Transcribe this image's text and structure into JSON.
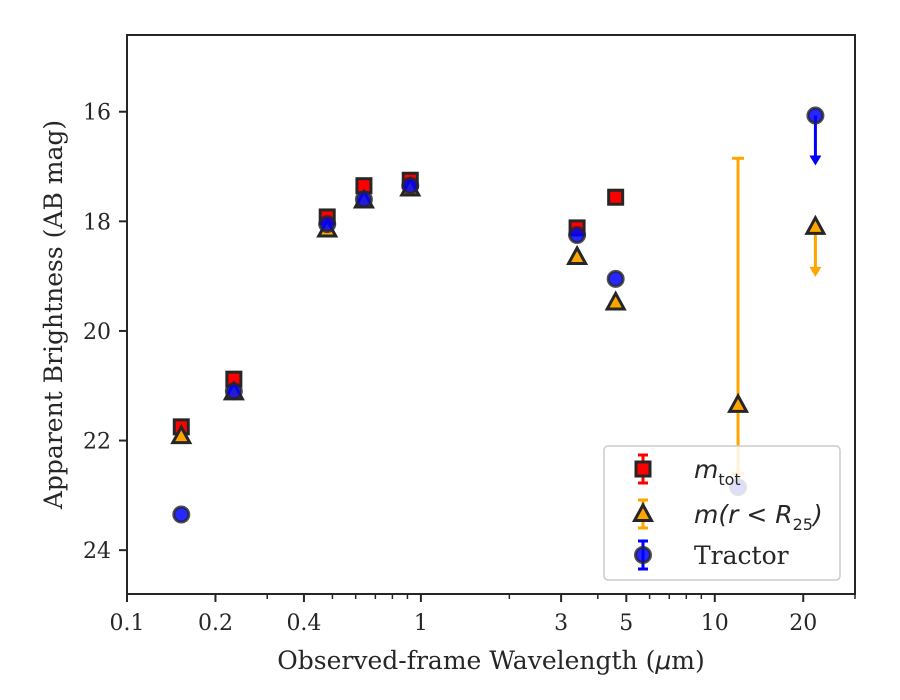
{
  "chart_data": {
    "type": "scatter",
    "xlabel_prefix": "Observed-frame Wavelength (",
    "xlabel_unit_math": "μ",
    "xlabel_suffix": "m)",
    "ylabel": "Apparent Brightness (AB mag)",
    "xscale": "log",
    "xlim": [
      0.1,
      30
    ],
    "ylim": [
      24.8,
      14.6
    ],
    "y_inverted": true,
    "x_major_ticks": [
      {
        "value": 0.1,
        "label": "0.1"
      },
      {
        "value": 0.2,
        "label": "0.2"
      },
      {
        "value": 0.4,
        "label": "0.4"
      },
      {
        "value": 1,
        "label": "1"
      },
      {
        "value": 3,
        "label": "3"
      },
      {
        "value": 5,
        "label": "5"
      },
      {
        "value": 10,
        "label": "10"
      },
      {
        "value": 20,
        "label": "20"
      }
    ],
    "x_minor_ticks": [
      0.3,
      0.5,
      0.6,
      0.7,
      0.8,
      0.9,
      2,
      4,
      6,
      7,
      8,
      9,
      30
    ],
    "y_ticks": [
      16,
      18,
      20,
      22,
      24
    ],
    "grid": false,
    "legend_position": "bottom-right",
    "series": [
      {
        "name": "m_tot",
        "legend_main": "m",
        "legend_sub": "tot",
        "marker": "square",
        "color": "#ff0000",
        "edge": "#262626",
        "points": [
          {
            "x": 0.153,
            "y": 21.75
          },
          {
            "x": 0.231,
            "y": 20.88
          },
          {
            "x": 0.48,
            "y": 17.92
          },
          {
            "x": 0.64,
            "y": 17.35
          },
          {
            "x": 0.92,
            "y": 17.25
          },
          {
            "x": 3.4,
            "y": 18.12
          },
          {
            "x": 4.6,
            "y": 17.56
          }
        ]
      },
      {
        "name": "m(r < R25)",
        "legend_main": "m(r < R",
        "legend_sub": "25",
        "legend_close": ")",
        "marker": "triangle",
        "color": "#ffa500",
        "edge": "#262626",
        "points": [
          {
            "x": 0.153,
            "y": 21.92
          },
          {
            "x": 0.231,
            "y": 21.12
          },
          {
            "x": 0.48,
            "y": 18.15
          },
          {
            "x": 0.64,
            "y": 17.62
          },
          {
            "x": 0.92,
            "y": 17.4
          },
          {
            "x": 3.4,
            "y": 18.65
          },
          {
            "x": 4.6,
            "y": 19.48
          },
          {
            "x": 12,
            "y": 21.35,
            "err_low": 16.85,
            "err_high": 22.6
          },
          {
            "x": 22,
            "y": 18.1,
            "upper_limit": true
          }
        ]
      },
      {
        "name": "Tractor",
        "legend_main": "Tractor",
        "marker": "circle",
        "color": "#0000ff",
        "edge": "#262626",
        "points": [
          {
            "x": 0.153,
            "y": 23.35
          },
          {
            "x": 0.231,
            "y": 21.1
          },
          {
            "x": 0.48,
            "y": 18.05
          },
          {
            "x": 0.64,
            "y": 17.6
          },
          {
            "x": 0.92,
            "y": 17.35
          },
          {
            "x": 3.4,
            "y": 18.25
          },
          {
            "x": 4.6,
            "y": 19.05
          },
          {
            "x": 12,
            "y": 22.85
          },
          {
            "x": 22,
            "y": 16.07,
            "upper_limit": true
          }
        ]
      }
    ]
  }
}
